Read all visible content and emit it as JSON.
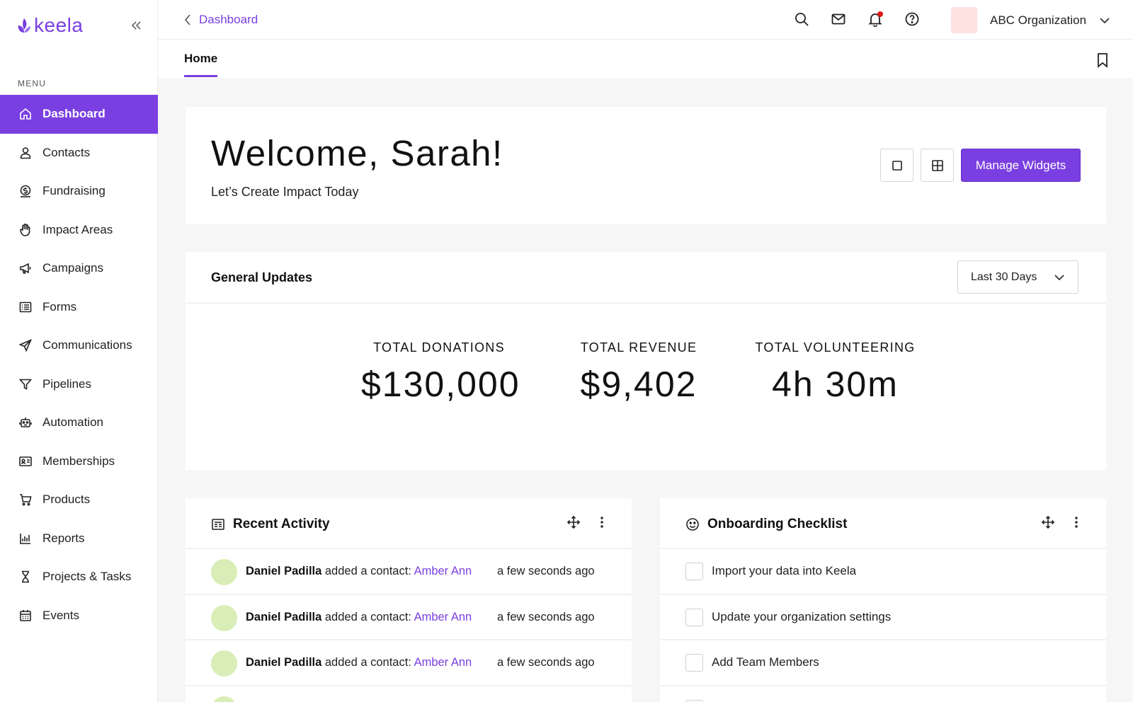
{
  "app": {
    "brand": "keela",
    "accent_color": "#7a3fe0"
  },
  "sidebar": {
    "menu_label": "MENU",
    "items": [
      {
        "label": "Dashboard",
        "icon": "home-icon",
        "active": true
      },
      {
        "label": "Contacts",
        "icon": "person-icon"
      },
      {
        "label": "Fundraising",
        "icon": "dollar-coin-icon"
      },
      {
        "label": "Impact Areas",
        "icon": "hand-icon"
      },
      {
        "label": "Campaigns",
        "icon": "megaphone-icon"
      },
      {
        "label": "Forms",
        "icon": "form-icon"
      },
      {
        "label": "Communications",
        "icon": "paper-plane-icon"
      },
      {
        "label": "Pipelines",
        "icon": "funnel-icon"
      },
      {
        "label": "Automation",
        "icon": "robot-icon"
      },
      {
        "label": "Memberships",
        "icon": "id-card-icon"
      },
      {
        "label": "Products",
        "icon": "cart-icon"
      },
      {
        "label": "Reports",
        "icon": "bar-chart-icon"
      },
      {
        "label": "Projects & Tasks",
        "icon": "hourglass-icon"
      },
      {
        "label": "Events",
        "icon": "calendar-icon"
      }
    ]
  },
  "topbar": {
    "breadcrumb": "Dashboard",
    "organization": "ABC Organization"
  },
  "tabs": {
    "home": "Home"
  },
  "welcome": {
    "title": "Welcome, Sarah!",
    "subtitle": "Let’s Create Impact Today",
    "manage_widgets": "Manage Widgets"
  },
  "updates": {
    "title": "General Updates",
    "range": "Last 30 Days",
    "stats": [
      {
        "label": "TOTAL DONATIONS",
        "value": "$130,000"
      },
      {
        "label": "TOTAL REVENUE",
        "value": "$9,402"
      },
      {
        "label": "TOTAL VOLUNTEERING",
        "value": "4h 30m"
      }
    ]
  },
  "activity": {
    "title": "Recent Activity",
    "rows": [
      {
        "actor": "Daniel Padilla",
        "action": " added a contact: ",
        "target": "Amber Ann",
        "time": "a few seconds ago"
      },
      {
        "actor": "Daniel Padilla",
        "action": " added a contact: ",
        "target": "Amber Ann",
        "time": "a few seconds ago"
      },
      {
        "actor": "Daniel Padilla",
        "action": " added a contact: ",
        "target": "Amber Ann",
        "time": "a few seconds ago"
      }
    ]
  },
  "onboarding": {
    "title": "Onboarding Checklist",
    "items": [
      {
        "label": "Import your data into Keela"
      },
      {
        "label": "Update your organization settings"
      },
      {
        "label": "Add Team Members"
      }
    ]
  }
}
